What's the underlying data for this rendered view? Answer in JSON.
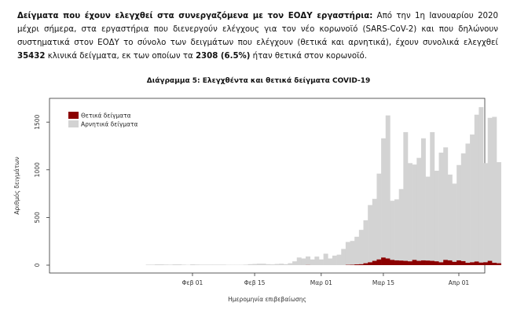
{
  "paragraph": {
    "lead": "Δείγματα που έχουν ελεγχθεί στα συνεργαζόμενα με τον ΕΟΔΥ εργαστήρια:",
    "part1": " Από την 1η Ιανουαρίου 2020 μέχρι σήμερα, στα εργαστήρια που διενεργούν ελέγχους για τον νέο κορωνοϊό (SARS-CoV-2) και που δηλώνουν συστηματικά στον ΕΟΔΥ το σύνολο των δειγμάτων που ελέγχουν (θετικά και αρνητικά), έχουν συνολικά ελεγχθεί ",
    "total": "35432",
    "part2": " κλινικά δείγματα, εκ των οποίων τα ",
    "positives": "2308 (6.5%)",
    "part3": " ήταν θετικά στον κορωνοϊό."
  },
  "chart_data": {
    "type": "bar",
    "stacked": true,
    "title": "Διάγραμμα 5: Ελεγχθέντα και θετικά δείγματα COVID-19",
    "xlabel": "Ημερομηνία επιβεβαίωσης",
    "ylabel": "Αριθμός δειγμάτων",
    "ylim": [
      0,
      1750
    ],
    "yticks": [
      0,
      500,
      1000,
      1500
    ],
    "xticks": [
      "Φεβ 01",
      "Φεβ 15",
      "Μαρ 01",
      "Μαρ 15",
      "Απρ 01"
    ],
    "xtick_day_index": [
      31,
      45,
      60,
      74,
      91
    ],
    "start_date": "2020-01-01",
    "legend_position": "top-left",
    "series": [
      {
        "name": "Θετικά δείγματα",
        "color": "#8b0000",
        "values": [
          0,
          0,
          0,
          0,
          0,
          0,
          0,
          0,
          0,
          0,
          0,
          0,
          0,
          0,
          0,
          0,
          0,
          0,
          0,
          0,
          0,
          0,
          0,
          0,
          0,
          0,
          0,
          0,
          0,
          0,
          0,
          0,
          0,
          0,
          0,
          0,
          0,
          0,
          0,
          0,
          0,
          0,
          0,
          0,
          0,
          0,
          0,
          0,
          0,
          0,
          0,
          0,
          0,
          0,
          0,
          0,
          0,
          1,
          0,
          0,
          0,
          0,
          0,
          0,
          0,
          0,
          3,
          4,
          8,
          10,
          20,
          30,
          45,
          60,
          80,
          70,
          55,
          50,
          48,
          45,
          40,
          55,
          45,
          50,
          48,
          45,
          40,
          30,
          55,
          50,
          35,
          50,
          42,
          25,
          30,
          38,
          27,
          30,
          45,
          25,
          20
        ]
      },
      {
        "name": "Αρνητικά δείγματα",
        "color": "#d3d3d3",
        "values": [
          0,
          0,
          0,
          0,
          0,
          0,
          0,
          0,
          0,
          0,
          0,
          0,
          0,
          0,
          0,
          0,
          0,
          0,
          0,
          0,
          0,
          5,
          5,
          8,
          8,
          6,
          5,
          8,
          8,
          5,
          3,
          8,
          6,
          5,
          5,
          5,
          5,
          5,
          5,
          3,
          3,
          3,
          3,
          5,
          10,
          12,
          15,
          15,
          10,
          8,
          12,
          15,
          10,
          20,
          40,
          80,
          70,
          90,
          60,
          90,
          60,
          120,
          70,
          100,
          110,
          170,
          240,
          250,
          290,
          360,
          450,
          600,
          650,
          900,
          1250,
          1500,
          620,
          640,
          750,
          1350,
          1030,
          1000,
          1080,
          1280,
          880,
          1350,
          950,
          1150,
          1180,
          900,
          820,
          1000,
          1130,
          1250,
          1340,
          1540,
          1630,
          1040,
          1500,
          1530,
          1060
        ]
      }
    ]
  }
}
